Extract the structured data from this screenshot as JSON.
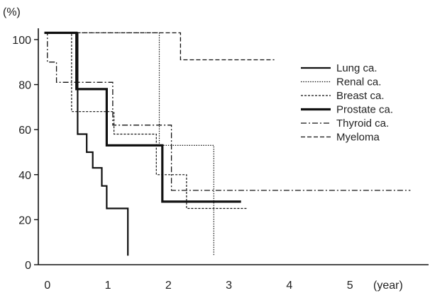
{
  "chart_data": {
    "type": "line",
    "subtype": "step (survival curves)",
    "title": "",
    "xlabel": "",
    "ylabel": "",
    "y_unit": "(%)",
    "x_unit": "(year)",
    "xlim": [
      -0.15,
      6.3
    ],
    "ylim": [
      0,
      105
    ],
    "x_ticks": [
      0,
      1,
      2,
      3,
      4,
      5
    ],
    "y_ticks": [
      0,
      20,
      40,
      60,
      80,
      100
    ],
    "grid": false,
    "legend_position": "right",
    "series": [
      {
        "name": "Lung ca.",
        "line_style": "solid-thin",
        "color": "#111111",
        "x": [
          -0.05,
          0.5,
          0.5,
          0.65,
          0.65,
          0.75,
          0.75,
          0.9,
          0.9,
          0.98,
          0.98,
          1.33,
          1.33
        ],
        "y": [
          103,
          103,
          58,
          58,
          50,
          50,
          43,
          43,
          35,
          35,
          25,
          25,
          4
        ]
      },
      {
        "name": "Renal ca.",
        "line_style": "dotted",
        "color": "#111111",
        "x": [
          -0.05,
          1.85,
          1.85,
          2.75,
          2.75
        ],
        "y": [
          103,
          103,
          53,
          53,
          4
        ]
      },
      {
        "name": "Breast ca.",
        "line_style": "dashed-fine",
        "color": "#111111",
        "x": [
          -0.05,
          0.4,
          0.4,
          1.1,
          1.1,
          1.8,
          1.8,
          2.3,
          2.3,
          3.3
        ],
        "y": [
          103,
          103,
          68,
          68,
          58,
          58,
          40,
          40,
          25,
          25
        ]
      },
      {
        "name": "Prostate ca.",
        "line_style": "solid-thick",
        "color": "#111111",
        "x": [
          -0.05,
          0.48,
          0.48,
          0.98,
          0.98,
          1.9,
          1.9,
          3.2
        ],
        "y": [
          103,
          103,
          78,
          78,
          53,
          53,
          28,
          28
        ]
      },
      {
        "name": "Thyroid ca.",
        "line_style": "dash-dot",
        "color": "#111111",
        "x": [
          -0.05,
          0.0,
          0.0,
          0.15,
          0.15,
          0.48,
          0.48,
          1.08,
          1.08,
          2.05,
          2.05,
          6.0
        ],
        "y": [
          103,
          103,
          90,
          90,
          81,
          81,
          81,
          81,
          62,
          62,
          33,
          33
        ]
      },
      {
        "name": "Myeloma",
        "line_style": "dashed",
        "color": "#111111",
        "x": [
          -0.05,
          2.2,
          2.2,
          3.75
        ],
        "y": [
          103,
          103,
          91,
          91
        ]
      }
    ]
  }
}
